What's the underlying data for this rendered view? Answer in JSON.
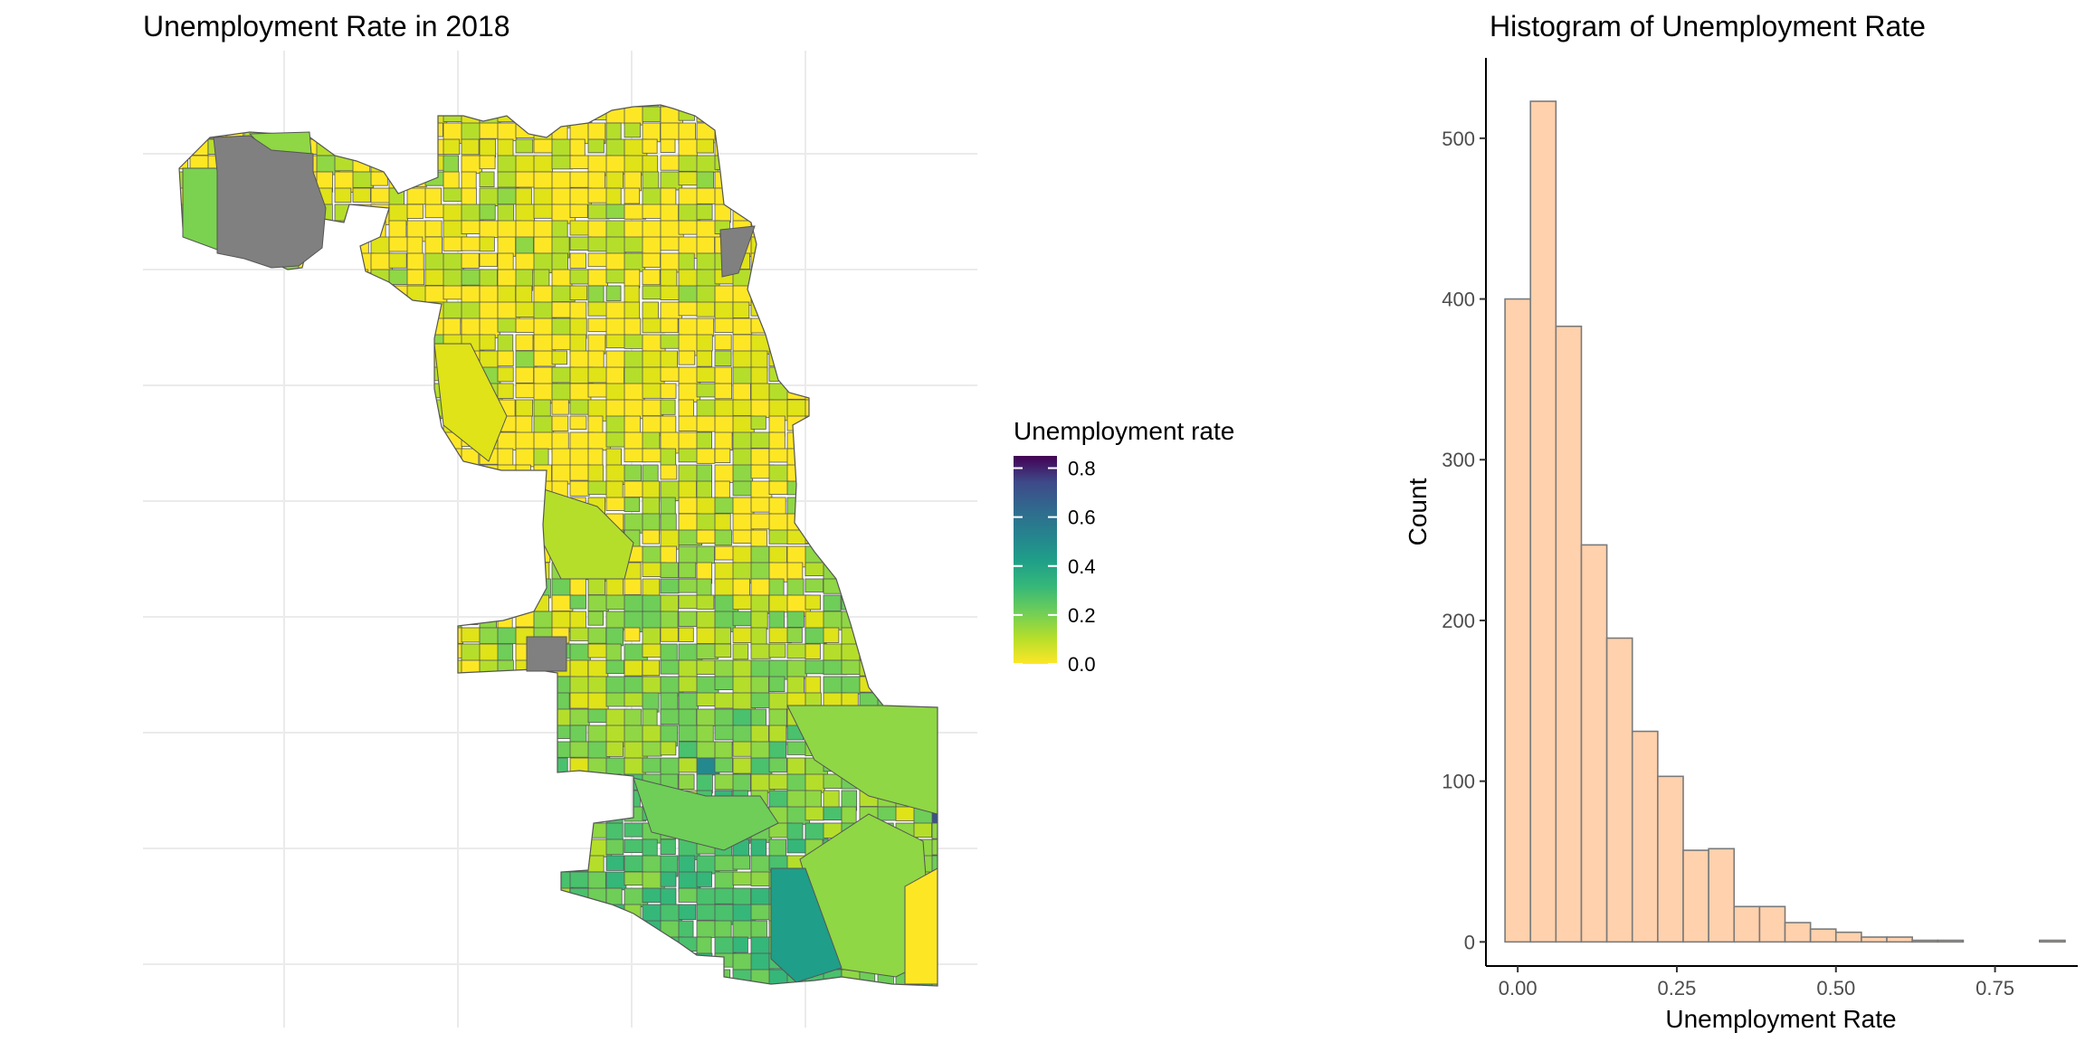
{
  "chart_data": [
    {
      "type": "choropleth-map",
      "title": "Unemployment Rate in 2018",
      "legend": {
        "title": "Unemployment rate",
        "colormap": "viridis (reversed: yellow = low, purple = high)",
        "ticks": [
          "0.0",
          "0.2",
          "0.4",
          "0.6",
          "0.8"
        ],
        "range": [
          0,
          0.85
        ],
        "placement": "right"
      },
      "colors": {
        "low": "#f2e523",
        "high": "#440154",
        "missing": "#808080",
        "border": "#555555",
        "grid": "#ebebeb"
      },
      "grid": true
    },
    {
      "type": "bar",
      "subtype": "histogram",
      "title": "Histogram of Unemployment Rate",
      "xlabel": "Unemployment Rate",
      "ylabel": "Count",
      "x_ticks": [
        "0.00",
        "0.25",
        "0.50",
        "0.75"
      ],
      "y_ticks": [
        "0",
        "100",
        "200",
        "300",
        "400",
        "500"
      ],
      "xlim": [
        -0.05,
        0.88
      ],
      "ylim": [
        -15,
        550
      ],
      "bin_width": 0.04,
      "bin_start": -0.02,
      "values": [
        400,
        523,
        383,
        247,
        189,
        131,
        103,
        57,
        58,
        22,
        22,
        12,
        8,
        6,
        3,
        3,
        1,
        1,
        0,
        0,
        0,
        1
      ],
      "fill": "#ffd1ac",
      "stroke": "#7a7a7a",
      "grid": false
    }
  ]
}
